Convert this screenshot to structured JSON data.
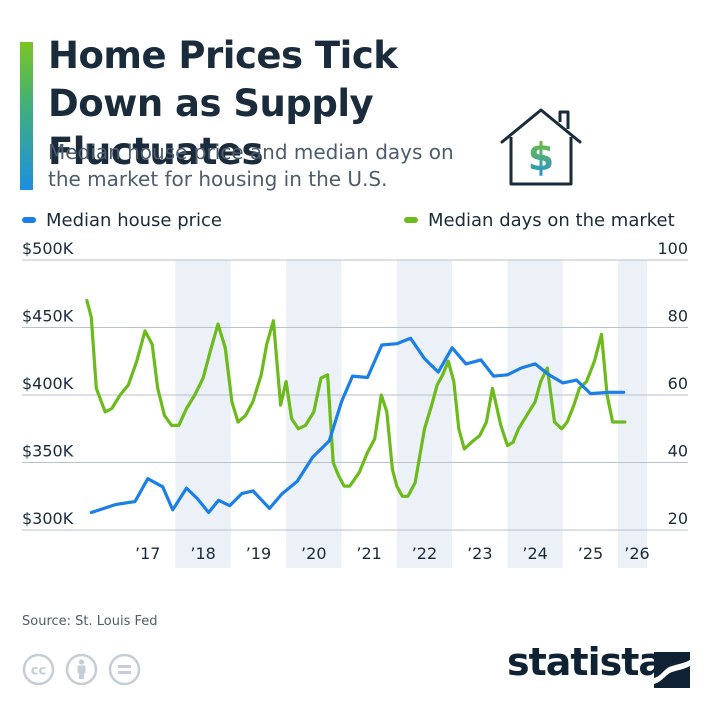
{
  "header": {
    "title": "Home Prices Tick Down as Supply Fluctuates",
    "subtitle": "Median house price and median days on the market for housing in the U.S."
  },
  "footer": {
    "source": "Source: St. Louis Fed",
    "brand": "statista"
  },
  "icons": {
    "house": "house-dollar-icon",
    "cc": "creative-commons-icon",
    "by": "attribution-icon",
    "nd": "no-derivatives-icon",
    "brand_mark": "statista-logo-icon"
  },
  "colors": {
    "price": "#1a7fe6",
    "days": "#6cbb1c",
    "band": "#ecf0f7",
    "grid": "#b8c1cc",
    "title": "#1a2b3c",
    "icon_gray": "#c5cdd6"
  },
  "chart_data": {
    "type": "line",
    "x_ticks": [
      "’17",
      "’18",
      "’19",
      "’20",
      "’21",
      "’22",
      "’23",
      "’24",
      "’25",
      "’26"
    ],
    "x_range": [
      2016.42,
      2026.16
    ],
    "shaded_years": [
      2018,
      2020,
      2022,
      2024,
      2026
    ],
    "left_axis": {
      "ticks": [
        "$300K",
        "$350K",
        "$400K",
        "$450K",
        "$500K"
      ],
      "ylim": [
        300,
        500
      ],
      "unit": "$K"
    },
    "right_axis": {
      "ticks": [
        "20",
        "40",
        "60",
        "80",
        "100"
      ],
      "ylim": [
        20,
        100
      ]
    },
    "grid": true,
    "legend_position": "top",
    "series": [
      {
        "name": "Median house price",
        "axis": "left",
        "x": [
          2016.48,
          2016.93,
          2017.27,
          2017.5,
          2017.77,
          2017.95,
          2018.2,
          2018.4,
          2018.6,
          2018.78,
          2018.98,
          2019.2,
          2019.4,
          2019.7,
          2019.93,
          2020.2,
          2020.48,
          2020.78,
          2021.0,
          2021.2,
          2021.47,
          2021.73,
          2022.0,
          2022.25,
          2022.5,
          2022.75,
          2023.0,
          2023.25,
          2023.52,
          2023.75,
          2024.0,
          2024.25,
          2024.5,
          2024.75,
          2025.0,
          2025.25,
          2025.5,
          2025.82,
          2026.1
        ],
        "values": [
          313,
          319,
          321,
          338,
          332,
          315,
          331,
          323,
          313,
          322,
          318,
          327,
          329,
          316,
          327,
          336,
          354,
          366,
          395,
          414,
          413,
          437,
          438,
          442,
          427,
          417,
          435,
          423,
          426,
          414,
          415,
          420,
          423,
          415,
          409,
          411,
          401,
          402,
          402
        ],
        "values_note": "trailing values follow the drawn line"
      },
      {
        "name": "Median days on the market",
        "axis": "right",
        "x": [
          2016.4,
          2016.48,
          2016.57,
          2016.73,
          2016.85,
          2017.0,
          2017.15,
          2017.3,
          2017.45,
          2017.58,
          2017.68,
          2017.8,
          2017.93,
          2018.06,
          2018.2,
          2018.35,
          2018.5,
          2018.63,
          2018.77,
          2018.9,
          2019.02,
          2019.13,
          2019.27,
          2019.4,
          2019.55,
          2019.65,
          2019.77,
          2019.9,
          2020.0,
          2020.1,
          2020.22,
          2020.35,
          2020.5,
          2020.63,
          2020.75,
          2020.85,
          2020.95,
          2021.05,
          2021.15,
          2021.32,
          2021.47,
          2021.6,
          2021.72,
          2021.82,
          2021.92,
          2022.0,
          2022.1,
          2022.2,
          2022.33,
          2022.5,
          2022.63,
          2022.73,
          2022.83,
          2022.93,
          2023.03,
          2023.12,
          2023.22,
          2023.35,
          2023.5,
          2023.62,
          2023.73,
          2023.88,
          2024.0,
          2024.1,
          2024.2,
          2024.35,
          2024.5,
          2024.6,
          2024.72,
          2024.85,
          2024.98,
          2025.08,
          2025.2,
          2025.3,
          2025.43,
          2025.57,
          2025.7,
          2025.8,
          2025.9,
          2026.0,
          2026.12
        ],
        "values": [
          88,
          83,
          62,
          55,
          56,
          60,
          63,
          70,
          79,
          75,
          62,
          54,
          51,
          51,
          56,
          60,
          65,
          73,
          81,
          74,
          58,
          52,
          54,
          58,
          66,
          75,
          82,
          57,
          64,
          53,
          50,
          51,
          55,
          65,
          66,
          40,
          36,
          33,
          33,
          37,
          43,
          47,
          60,
          55,
          38,
          33,
          30,
          30,
          34,
          50,
          57,
          63,
          66,
          70,
          64,
          50,
          44,
          46,
          48,
          52,
          62,
          51,
          45,
          46,
          50,
          54,
          58,
          64,
          68,
          52,
          50,
          52,
          57,
          62,
          64,
          70,
          78,
          60,
          52,
          52,
          52
        ]
      }
    ]
  }
}
